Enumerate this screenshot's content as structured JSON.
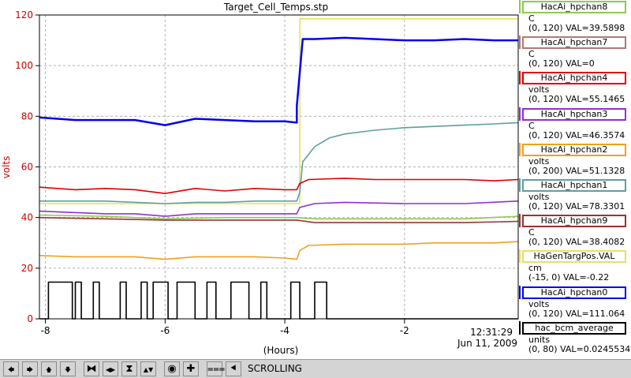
{
  "chart_data": {
    "type": "line",
    "title": "Target_Cell_Temps.stp",
    "xlabel": "(Hours)",
    "ylabel": "volts",
    "xlim": [
      -8.1,
      -0.1
    ],
    "ylim": [
      0,
      120
    ],
    "x_ticks": [
      -8,
      -6,
      -4,
      -2
    ],
    "y_ticks": [
      0,
      20,
      40,
      60,
      80,
      100,
      120
    ],
    "grid": true,
    "legend_position": "right",
    "timestamp": "12:31:29",
    "date": "Jun 11, 2009",
    "series": [
      {
        "name": "HaGenTargPos.VAL",
        "color": "#e8e060",
        "x": [
          -8.1,
          -3.75,
          -3.75,
          -0.1
        ],
        "y": [
          45.5,
          45.5,
          118.5,
          118.5
        ]
      },
      {
        "name": "HacAi_hpchan0",
        "color": "#0000ee",
        "x": [
          -8.1,
          -7.5,
          -7.0,
          -6.5,
          -6.0,
          -5.5,
          -5.0,
          -4.5,
          -4.0,
          -3.8,
          -3.8,
          -3.7,
          -3.5,
          -3.0,
          -2.5,
          -2.0,
          -1.5,
          -1.0,
          -0.5,
          -0.1
        ],
        "y": [
          79.5,
          78.5,
          78.5,
          78.5,
          76.5,
          79.0,
          78.5,
          78.0,
          78.0,
          77.5,
          84,
          110.5,
          110.5,
          111.0,
          110.5,
          110.0,
          110.0,
          110.5,
          110.0,
          110.0
        ]
      },
      {
        "name": "HacAi_hpchan1",
        "color": "#5f9e9e",
        "x": [
          -8.1,
          -7.0,
          -6.0,
          -5.5,
          -5.0,
          -4.5,
          -3.8,
          -3.75,
          -3.7,
          -3.5,
          -3.25,
          -3.0,
          -2.5,
          -2.0,
          -1.5,
          -1.0,
          -0.5,
          -0.1
        ],
        "y": [
          46.5,
          46.5,
          45.5,
          46.0,
          46.0,
          46.5,
          46.5,
          50,
          62,
          68,
          71.5,
          73.0,
          74.5,
          75.5,
          76.0,
          76.5,
          77.0,
          77.5
        ]
      },
      {
        "name": "HacAi_hpchan4",
        "color": "#dd0000",
        "x": [
          -8.1,
          -7.5,
          -7.0,
          -6.5,
          -6.0,
          -5.5,
          -5.0,
          -4.5,
          -4.0,
          -3.8,
          -3.75,
          -3.6,
          -3.0,
          -2.5,
          -2.0,
          -1.5,
          -1.0,
          -0.5,
          -0.1
        ],
        "y": [
          52.0,
          51.0,
          51.5,
          51.0,
          49.5,
          51.5,
          50.5,
          51.5,
          51.0,
          51.0,
          53.5,
          55.0,
          55.5,
          55.0,
          55.0,
          55.0,
          55.0,
          54.5,
          55.0
        ]
      },
      {
        "name": "HacAi_hpchan3",
        "color": "#9030d0",
        "x": [
          -8.1,
          -7.0,
          -6.5,
          -6.0,
          -5.5,
          -5.0,
          -4.5,
          -4.0,
          -3.8,
          -3.75,
          -3.5,
          -3.0,
          -2.0,
          -1.0,
          -0.1
        ],
        "y": [
          42.5,
          41.5,
          41.5,
          40.5,
          41.5,
          41.5,
          41.5,
          41.5,
          41.5,
          44,
          45.5,
          46.0,
          45.5,
          45.5,
          46.5
        ]
      },
      {
        "name": "HacAi_hpchan8",
        "color": "#90c850",
        "x": [
          -8.1,
          -7.0,
          -6.0,
          -5.0,
          -4.0,
          -3.8,
          -3.5,
          -3.0,
          -2.0,
          -1.0,
          -0.1
        ],
        "y": [
          41.0,
          40.5,
          39.5,
          40.0,
          40.0,
          40.0,
          39.5,
          39.5,
          39.5,
          39.5,
          40.5
        ]
      },
      {
        "name": "HacAi_hpchan9",
        "color": "#993333",
        "x": [
          -8.1,
          -7.0,
          -6.0,
          -5.0,
          -4.0,
          -3.8,
          -3.5,
          -3.0,
          -2.0,
          -1.0,
          -0.1
        ],
        "y": [
          40.0,
          39.5,
          39.0,
          39.0,
          39.0,
          39.0,
          38.0,
          38.0,
          38.0,
          38.0,
          38.5
        ]
      },
      {
        "name": "HacAi_hpchan2",
        "color": "#f0a020",
        "x": [
          -8.1,
          -7.5,
          -7.0,
          -6.5,
          -6.0,
          -5.5,
          -5.0,
          -4.5,
          -4.0,
          -3.8,
          -3.75,
          -3.6,
          -3.0,
          -2.5,
          -2.0,
          -1.5,
          -1.0,
          -0.5,
          -0.1
        ],
        "y": [
          25.0,
          24.5,
          24.5,
          24.5,
          23.5,
          24.5,
          24.5,
          24.5,
          24.0,
          23.5,
          27.0,
          29.0,
          29.5,
          29.5,
          29.5,
          30.0,
          30.0,
          30.0,
          30.5
        ]
      },
      {
        "name": "hac_bcm_average",
        "color": "#000000",
        "x": [
          -8.1,
          -7.95,
          -7.95,
          -7.55,
          -7.55,
          -7.5,
          -7.5,
          -7.4,
          -7.4,
          -7.2,
          -7.2,
          -7.1,
          -7.1,
          -6.75,
          -6.75,
          -6.65,
          -6.65,
          -6.4,
          -6.4,
          -6.3,
          -6.3,
          -6.2,
          -6.2,
          -5.95,
          -5.95,
          -5.8,
          -5.8,
          -5.5,
          -5.5,
          -5.3,
          -5.3,
          -5.15,
          -5.15,
          -4.9,
          -4.9,
          -4.6,
          -4.6,
          -4.4,
          -4.4,
          -4.3,
          -4.3,
          -3.9,
          -3.9,
          -3.75,
          -3.75,
          -3.5,
          -3.5,
          -3.3,
          -3.3,
          -0.1
        ],
        "y": [
          0,
          0,
          14.5,
          14.5,
          0,
          0,
          14.5,
          14.5,
          0,
          0,
          14.5,
          14.5,
          0,
          0,
          14.5,
          14.5,
          0,
          0,
          14.5,
          14.5,
          0,
          0,
          14.5,
          14.5,
          0,
          0,
          14.5,
          14.5,
          0,
          0,
          14.5,
          14.5,
          0,
          0,
          14.5,
          14.5,
          0,
          0,
          14.5,
          14.5,
          0,
          0,
          14.5,
          14.5,
          0,
          0,
          14.5,
          14.5,
          0,
          0
        ]
      }
    ]
  },
  "legend": [
    {
      "name": "HacAi_hpchan8",
      "unit": "C",
      "range": "(0, 120) VAL=39.5898",
      "color": "#90c850"
    },
    {
      "name": "HacAi_hpchan7",
      "unit": "C",
      "range": "(0, 120) VAL=0",
      "color": "#b07878"
    },
    {
      "name": "HacAi_hpchan4",
      "unit": "volts",
      "range": "(0, 120) VAL=55.1465",
      "color": "#dd0000"
    },
    {
      "name": "HacAi_hpchan3",
      "unit": "C",
      "range": "(0, 120) VAL=46.3574",
      "color": "#9030d0"
    },
    {
      "name": "HacAi_hpchan2",
      "unit": "volts",
      "range": "(0, 200) VAL=51.1328",
      "color": "#f0a020"
    },
    {
      "name": "HacAi_hpchan1",
      "unit": "volts",
      "range": "(0, 120) VAL=78.3301",
      "color": "#5f9e9e"
    },
    {
      "name": "HacAi_hpchan9",
      "unit": "C",
      "range": "(0, 120) VAL=38.4082",
      "color": "#993333"
    },
    {
      "name": "HaGenTargPos.VAL",
      "unit": "cm",
      "range": "(-15, 0) VAL=-0.22",
      "color": "#e8e060"
    },
    {
      "name": "HacAi_hpchan0",
      "unit": "volts",
      "range": "(0, 120) VAL=111.064",
      "color": "#0000ee"
    },
    {
      "name": "hac_bcm_average",
      "unit": "units",
      "range": "(0, 80) VAL=0.0245534",
      "color": "#000000"
    }
  ],
  "toolbar": {
    "buttons": [
      {
        "name": "arrow-left-icon",
        "glyph": "🡄"
      },
      {
        "name": "arrow-right-icon",
        "glyph": "🡆"
      },
      {
        "name": "arrow-up-icon",
        "glyph": "🡅"
      },
      {
        "name": "arrow-down-icon",
        "glyph": "🡇"
      },
      {
        "name": "zoom-in-horizontal-icon",
        "glyph": "⧓"
      },
      {
        "name": "zoom-out-horizontal-icon",
        "glyph": "◀▶"
      },
      {
        "name": "zoom-in-vertical-icon",
        "glyph": "⧗"
      },
      {
        "name": "zoom-out-vertical-icon",
        "glyph": "▲▼"
      },
      {
        "name": "record-icon",
        "glyph": "◉"
      },
      {
        "name": "plus-icon",
        "glyph": "✚"
      },
      {
        "name": "autoscale-icon",
        "glyph": "⩶"
      },
      {
        "name": "scroll-back-icon",
        "glyph": "⯇"
      }
    ],
    "status": "SCROLLING"
  }
}
